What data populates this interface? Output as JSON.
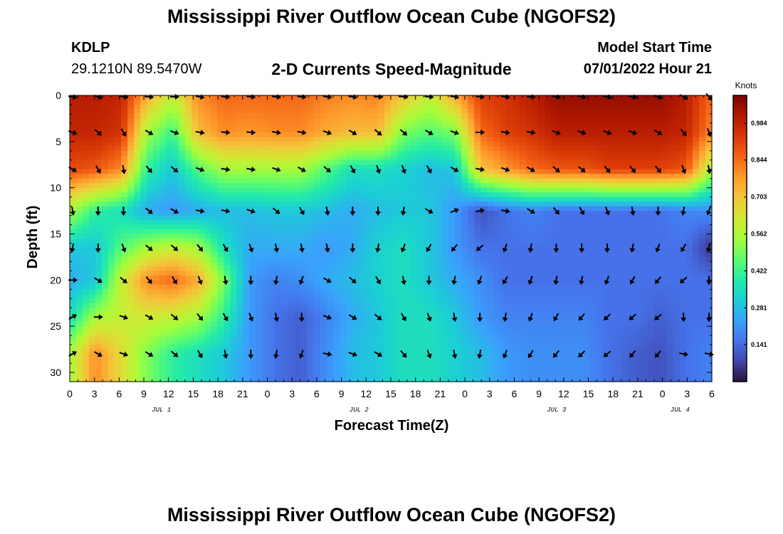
{
  "page": {
    "title": "Mississippi River Outflow Ocean Cube (NGOFS2)",
    "station_id": "KDLP",
    "station_coords": "29.1210N  89.5470W",
    "subtitle": "2-D Currents Speed-Magnitude",
    "model_label": "Model Start Time",
    "model_time": "07/01/2022 Hour 21"
  },
  "chart_data": {
    "type": "heatmap",
    "xlabel": "Forecast Time(Z)",
    "ylabel": "Depth (ft)",
    "x_tick_labels": [
      "0",
      "3",
      "6",
      "9",
      "12",
      "15",
      "18",
      "21",
      "0",
      "3",
      "6",
      "9",
      "12",
      "15",
      "18",
      "21",
      "0",
      "3",
      "6",
      "9",
      "12",
      "15",
      "18",
      "21",
      "0",
      "3",
      "6"
    ],
    "x_date_labels": [
      {
        "label": "JUL 1",
        "tick_index": 4
      },
      {
        "label": "JUL 2",
        "tick_index": 12
      },
      {
        "label": "JUL 3",
        "tick_index": 20
      },
      {
        "label": "JUL 4",
        "tick_index": 25
      }
    ],
    "y_ticks": [
      0,
      5,
      10,
      15,
      20,
      25,
      30
    ],
    "y_range": [
      0,
      31
    ],
    "colorbar": {
      "unit": "Knots",
      "tick_labels": [
        "0.984",
        "0.844",
        "0.703",
        "0.562",
        "0.422",
        "0.281",
        "0.141"
      ],
      "tick_values": [
        0.984,
        0.844,
        0.703,
        0.562,
        0.422,
        0.281,
        0.141
      ],
      "range": [
        0.0,
        1.09
      ],
      "colormap": [
        "#30123b",
        "#4145ab",
        "#4675ed",
        "#39a2fc",
        "#1bcfd4",
        "#24eca6",
        "#61fc6c",
        "#a4fc3b",
        "#d1e834",
        "#f3c63a",
        "#fe9b2d",
        "#f36315",
        "#d93806",
        "#b11901",
        "#7a0403"
      ]
    },
    "depth_rows": [
      0,
      4,
      8,
      12.5,
      16.5,
      20,
      24,
      28
    ],
    "speed_grid": [
      [
        1.0,
        1.0,
        0.98,
        0.75,
        0.6,
        0.8,
        0.85,
        0.85,
        0.85,
        0.85,
        0.82,
        0.8,
        0.82,
        0.7,
        0.6,
        0.75,
        0.92,
        0.95,
        1.0,
        1.05,
        1.05,
        1.05,
        1.05,
        1.05,
        1.0,
        0.85
      ],
      [
        0.98,
        0.98,
        0.95,
        0.55,
        0.42,
        0.72,
        0.8,
        0.78,
        0.8,
        0.8,
        0.75,
        0.72,
        0.72,
        0.5,
        0.45,
        0.5,
        0.85,
        0.92,
        0.95,
        1.0,
        1.0,
        1.0,
        1.0,
        1.0,
        0.98,
        0.8
      ],
      [
        0.9,
        0.88,
        0.8,
        0.4,
        0.3,
        0.45,
        0.55,
        0.55,
        0.55,
        0.55,
        0.45,
        0.35,
        0.35,
        0.32,
        0.28,
        0.3,
        0.7,
        0.78,
        0.85,
        0.88,
        0.88,
        0.92,
        0.92,
        0.92,
        0.88,
        0.55
      ],
      [
        0.55,
        0.4,
        0.35,
        0.25,
        0.22,
        0.25,
        0.28,
        0.28,
        0.3,
        0.3,
        0.28,
        0.25,
        0.28,
        0.3,
        0.3,
        0.22,
        0.1,
        0.15,
        0.18,
        0.15,
        0.15,
        0.15,
        0.15,
        0.15,
        0.18,
        0.2
      ],
      [
        0.3,
        0.3,
        0.45,
        0.55,
        0.6,
        0.55,
        0.35,
        0.25,
        0.25,
        0.25,
        0.22,
        0.25,
        0.32,
        0.35,
        0.3,
        0.22,
        0.15,
        0.15,
        0.15,
        0.15,
        0.15,
        0.15,
        0.15,
        0.15,
        0.15,
        0.05
      ],
      [
        0.25,
        0.3,
        0.6,
        0.8,
        0.85,
        0.75,
        0.5,
        0.22,
        0.18,
        0.2,
        0.25,
        0.28,
        0.32,
        0.35,
        0.3,
        0.25,
        0.2,
        0.15,
        0.15,
        0.15,
        0.15,
        0.15,
        0.15,
        0.15,
        0.15,
        0.15
      ],
      [
        0.35,
        0.55,
        0.6,
        0.62,
        0.6,
        0.55,
        0.4,
        0.22,
        0.15,
        0.12,
        0.18,
        0.25,
        0.3,
        0.35,
        0.35,
        0.3,
        0.22,
        0.18,
        0.18,
        0.18,
        0.18,
        0.15,
        0.15,
        0.12,
        0.15,
        0.15
      ],
      [
        0.55,
        0.8,
        0.65,
        0.5,
        0.4,
        0.35,
        0.3,
        0.22,
        0.15,
        0.12,
        0.2,
        0.28,
        0.3,
        0.35,
        0.35,
        0.32,
        0.28,
        0.22,
        0.2,
        0.2,
        0.2,
        0.15,
        0.12,
        0.1,
        0.15,
        0.18
      ]
    ],
    "current_direction_deg": [
      [
        100,
        110,
        100,
        95,
        90,
        100,
        95,
        95,
        95,
        95,
        100,
        100,
        95,
        95,
        95,
        100,
        95,
        100,
        95,
        100,
        100,
        100,
        100,
        110,
        120,
        140
      ],
      [
        110,
        130,
        150,
        120,
        110,
        100,
        95,
        95,
        100,
        100,
        110,
        120,
        130,
        130,
        120,
        110,
        90,
        100,
        100,
        110,
        110,
        110,
        110,
        120,
        140,
        160
      ],
      [
        120,
        150,
        170,
        140,
        130,
        110,
        100,
        100,
        110,
        120,
        130,
        150,
        160,
        160,
        150,
        120,
        100,
        110,
        120,
        130,
        130,
        140,
        140,
        140,
        160,
        170
      ],
      [
        170,
        180,
        180,
        130,
        120,
        100,
        100,
        110,
        130,
        150,
        170,
        180,
        180,
        190,
        120,
        70,
        80,
        100,
        120,
        140,
        150,
        160,
        170,
        180,
        190,
        200
      ],
      [
        190,
        180,
        160,
        130,
        130,
        140,
        150,
        160,
        170,
        170,
        170,
        180,
        190,
        200,
        210,
        220,
        230,
        200,
        190,
        180,
        180,
        180,
        190,
        200,
        210,
        190
      ],
      [
        90,
        120,
        130,
        140,
        150,
        160,
        170,
        180,
        190,
        200,
        120,
        130,
        150,
        170,
        180,
        190,
        200,
        210,
        200,
        190,
        190,
        200,
        210,
        220,
        230,
        180
      ],
      [
        60,
        90,
        110,
        120,
        130,
        140,
        150,
        160,
        170,
        180,
        110,
        120,
        130,
        150,
        160,
        170,
        180,
        190,
        200,
        210,
        220,
        225,
        230,
        230,
        180,
        180
      ],
      [
        60,
        120,
        110,
        120,
        130,
        150,
        170,
        180,
        190,
        200,
        100,
        110,
        120,
        140,
        160,
        170,
        190,
        200,
        210,
        220,
        225,
        230,
        220,
        220,
        100,
        100
      ]
    ],
    "arrow_columns": 26
  }
}
